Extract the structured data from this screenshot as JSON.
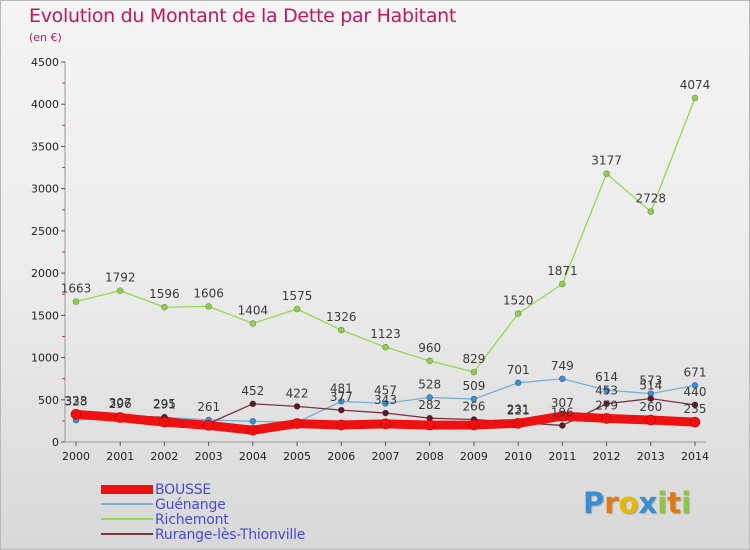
{
  "chart_data": {
    "type": "line",
    "title": "Evolution du Montant de la Dette par Habitant",
    "subtitle": "(en €)",
    "xlabel": "",
    "ylabel": "",
    "ylim": [
      0,
      4500
    ],
    "yticks": [
      0,
      500,
      1000,
      1500,
      2000,
      2500,
      3000,
      3500,
      4000,
      4500
    ],
    "categories": [
      "2000",
      "2001",
      "2002",
      "2003",
      "2004",
      "2005",
      "2006",
      "2007",
      "2008",
      "2009",
      "2010",
      "2011",
      "2012",
      "2013",
      "2014"
    ],
    "grid": false,
    "legend_position": "bottom-left",
    "series": [
      {
        "name": "BOUSSE",
        "color": "#ee1111",
        "line_color": "#ee1111",
        "values": [
          328,
          289,
          235,
          197,
          139,
          218,
          201,
          215,
          200,
          202,
          221,
          307,
          279,
          260,
          235
        ],
        "labels": [
          "328",
          "",
          "",
          "",
          "",
          "",
          "",
          "",
          "",
          "",
          "221",
          "307",
          "279",
          "260",
          "235"
        ]
      },
      {
        "name": "Guénange",
        "color": "#3b8fd0",
        "line_color": "#79aed6",
        "values": [
          258,
          296,
          291,
          261,
          245,
          234,
          481,
          457,
          528,
          509,
          701,
          749,
          614,
          573,
          671
        ],
        "labels": [
          "",
          "296",
          "291",
          "261",
          "",
          "",
          "481",
          "457",
          "528",
          "509",
          "701",
          "749",
          "614",
          "573",
          "671"
        ]
      },
      {
        "name": "Richemont",
        "color": "#8fd04a",
        "line_color": "#93d94e",
        "values": [
          1663,
          1792,
          1596,
          1606,
          1404,
          1575,
          1326,
          1123,
          960,
          829,
          1520,
          1871,
          3177,
          2728,
          4074
        ],
        "labels": [
          "1663",
          "1792",
          "1596",
          "1606",
          "1404",
          "1575",
          "1326",
          "1123",
          "960",
          "829",
          "1520",
          "1871",
          "3177",
          "2728",
          "4074"
        ]
      },
      {
        "name": "Rurange-lès-Thionville",
        "color": "#5a1a28",
        "line_color": "#7a3442",
        "values": [
          333,
          307,
          295,
          219,
          452,
          422,
          377,
          343,
          282,
          266,
          231,
          196,
          453,
          514,
          440
        ],
        "labels": [
          "333",
          "307",
          "295",
          "",
          "452",
          "422",
          "377",
          "343",
          "282",
          "266",
          "231",
          "196",
          "453",
          "514",
          "440"
        ]
      }
    ]
  },
  "legend": [
    {
      "label": "BOUSSE",
      "color": "#ee1111"
    },
    {
      "label": "Guénange",
      "color": "#79aed6"
    },
    {
      "label": "Richemont",
      "color": "#93d94e"
    },
    {
      "label": "Rurange-lès-Thionville",
      "color": "#7a3442"
    }
  ],
  "logo": {
    "text": "Proxiti",
    "letters": [
      {
        "char": "P",
        "color": "#3a8ed0"
      },
      {
        "char": "r",
        "color": "#e07a18"
      },
      {
        "char": "o",
        "color": "#e8b800"
      },
      {
        "char": "x",
        "color": "#3a8ed0"
      },
      {
        "char": "i",
        "color": "#8cc63f"
      },
      {
        "char": "t",
        "color": "#e07a18"
      },
      {
        "char": "i",
        "color": "#8cc63f"
      }
    ]
  }
}
